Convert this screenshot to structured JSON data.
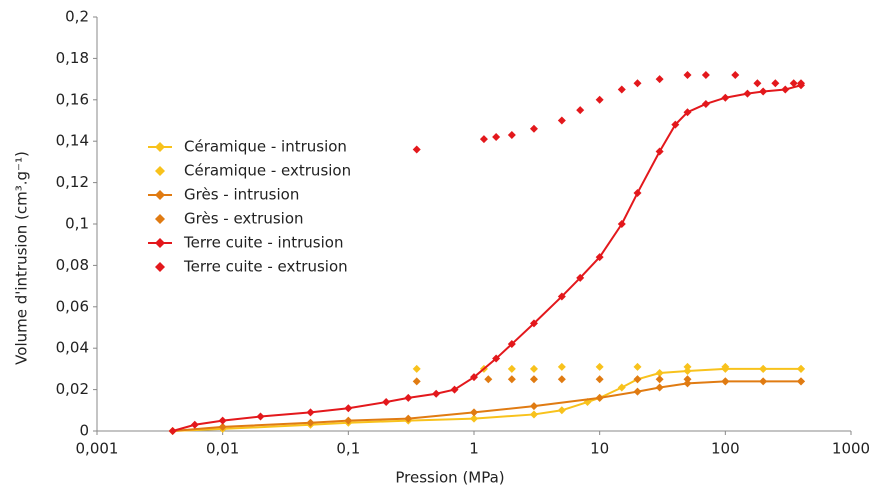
{
  "chart_data": {
    "type": "scatter",
    "x_label": "Pression (MPa)",
    "y_label": "Volume d'intrusion (cm³.g⁻¹)",
    "xlim": [
      0.001,
      1000
    ],
    "x_log": true,
    "xticks": [
      {
        "value": 0.001,
        "label": "0,001"
      },
      {
        "value": 0.01,
        "label": "0,01"
      },
      {
        "value": 0.1,
        "label": "0,1"
      },
      1,
      10,
      100,
      1000
    ],
    "ylim": [
      0,
      0.2
    ],
    "yticks": [
      0,
      {
        "value": 0.02,
        "label": "0,02"
      },
      {
        "value": 0.04,
        "label": "0,04"
      },
      {
        "value": 0.06,
        "label": "0,06"
      },
      {
        "value": 0.08,
        "label": "0,08"
      },
      {
        "value": 0.1,
        "label": "0,1"
      },
      {
        "value": 0.12,
        "label": "0,12"
      },
      {
        "value": 0.14,
        "label": "0,14"
      },
      {
        "value": 0.16,
        "label": "0,16"
      },
      {
        "value": 0.18,
        "label": "0,18"
      },
      {
        "value": 0.2,
        "label": "0,2"
      }
    ],
    "grid": false,
    "legend": "upper-left",
    "series": [
      {
        "name": "Céramique - intrusion",
        "color": "#f8c21c",
        "line": true,
        "x": [
          0.004,
          0.01,
          0.05,
          0.1,
          0.3,
          1,
          3,
          5,
          8,
          10,
          15,
          20,
          30,
          50,
          100,
          200,
          400
        ],
        "values": [
          0,
          0.001,
          0.003,
          0.004,
          0.005,
          0.006,
          0.008,
          0.01,
          0.014,
          0.016,
          0.021,
          0.025,
          0.028,
          0.029,
          0.03,
          0.03,
          0.03
        ]
      },
      {
        "name": "Céramique - extrusion",
        "color": "#f8c21c",
        "line": false,
        "x": [
          0.35,
          1.2,
          2,
          3,
          5,
          10,
          20,
          50,
          100,
          200,
          400
        ],
        "values": [
          0.03,
          0.03,
          0.03,
          0.03,
          0.031,
          0.031,
          0.031,
          0.031,
          0.031,
          0.03,
          0.03
        ]
      },
      {
        "name": "Grès - intrusion",
        "color": "#e07b12",
        "line": true,
        "x": [
          0.004,
          0.01,
          0.05,
          0.1,
          0.3,
          1,
          3,
          10,
          20,
          30,
          50,
          100,
          400
        ],
        "values": [
          0,
          0.002,
          0.004,
          0.005,
          0.006,
          0.009,
          0.012,
          0.016,
          0.019,
          0.021,
          0.023,
          0.024,
          0.024
        ]
      },
      {
        "name": "Grès - extrusion",
        "color": "#e07b12",
        "line": false,
        "x": [
          0.35,
          1.3,
          2,
          3,
          5,
          10,
          20,
          30,
          50,
          100,
          200,
          400
        ],
        "values": [
          0.024,
          0.025,
          0.025,
          0.025,
          0.025,
          0.025,
          0.025,
          0.025,
          0.025,
          0.024,
          0.024,
          0.024
        ]
      },
      {
        "name": "Terre cuite - intrusion",
        "color": "#e3181c",
        "line": true,
        "x": [
          0.004,
          0.006,
          0.01,
          0.02,
          0.05,
          0.1,
          0.2,
          0.3,
          0.5,
          0.7,
          1,
          1.5,
          2,
          3,
          5,
          7,
          10,
          15,
          20,
          30,
          40,
          50,
          70,
          100,
          150,
          200,
          300,
          400
        ],
        "values": [
          0,
          0.003,
          0.005,
          0.007,
          0.009,
          0.011,
          0.014,
          0.016,
          0.018,
          0.02,
          0.026,
          0.035,
          0.042,
          0.052,
          0.065,
          0.074,
          0.084,
          0.1,
          0.115,
          0.135,
          0.148,
          0.154,
          0.158,
          0.161,
          0.163,
          0.164,
          0.165,
          0.167
        ]
      },
      {
        "name": "Terre cuite - extrusion",
        "color": "#e3181c",
        "line": false,
        "x": [
          0.35,
          1.2,
          1.5,
          2,
          3,
          5,
          7,
          10,
          15,
          20,
          30,
          50,
          70,
          120,
          180,
          250,
          350,
          400
        ],
        "values": [
          0.136,
          0.141,
          0.142,
          0.143,
          0.146,
          0.15,
          0.155,
          0.16,
          0.165,
          0.168,
          0.17,
          0.172,
          0.172,
          0.172,
          0.168,
          0.168,
          0.168,
          0.168
        ]
      }
    ]
  }
}
